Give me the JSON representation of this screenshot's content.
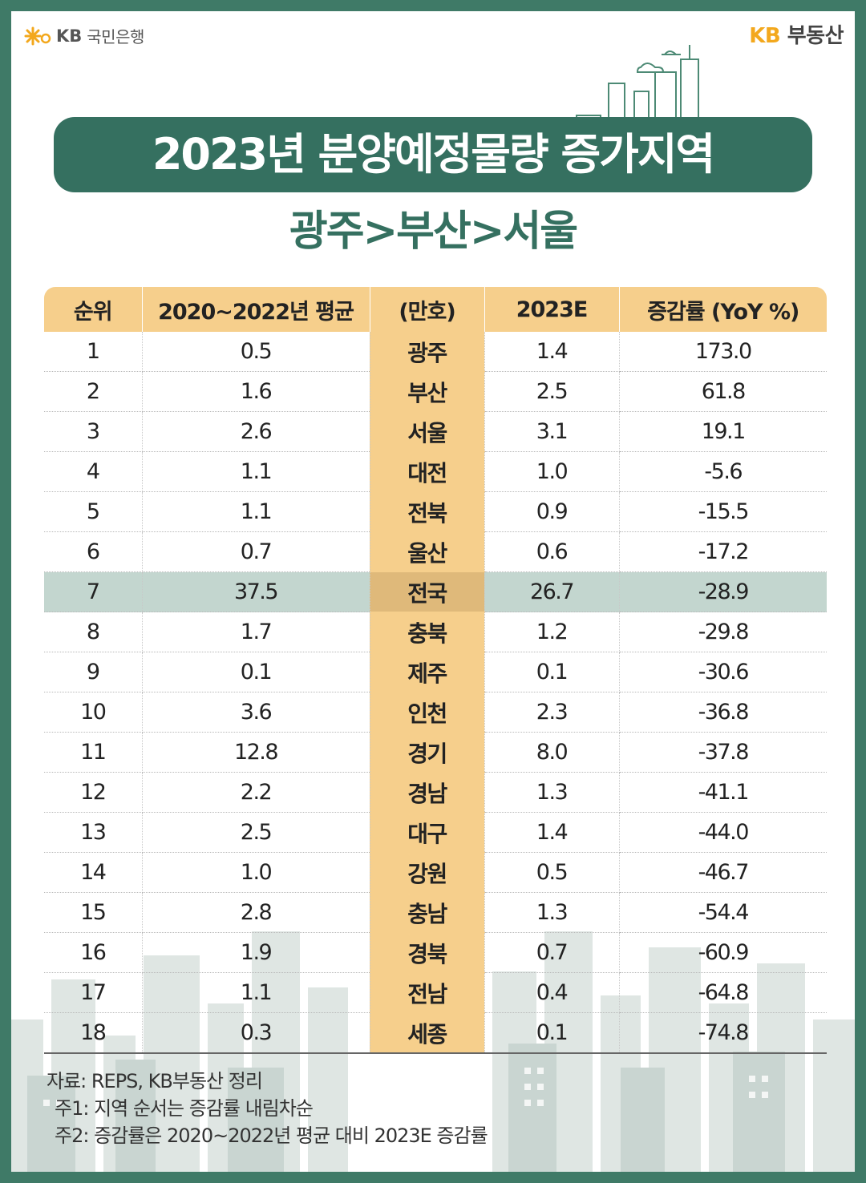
{
  "brand_left": {
    "kb": "KB",
    "name": "국민은행"
  },
  "brand_right": {
    "kb": "KB",
    "name": "부동산"
  },
  "title": "2023년 분양예정물량 증가지역",
  "subtitle": "광주>부산>서울",
  "table": {
    "headers": [
      "순위",
      "2020~2022년 평균",
      "(만호)",
      "2023E",
      "증감률 (YoY %)"
    ],
    "rows": [
      {
        "rank": "1",
        "avg": "0.5",
        "region": "광주",
        "e2023": "1.4",
        "yoy": "173.0"
      },
      {
        "rank": "2",
        "avg": "1.6",
        "region": "부산",
        "e2023": "2.5",
        "yoy": "61.8"
      },
      {
        "rank": "3",
        "avg": "2.6",
        "region": "서울",
        "e2023": "3.1",
        "yoy": "19.1"
      },
      {
        "rank": "4",
        "avg": "1.1",
        "region": "대전",
        "e2023": "1.0",
        "yoy": "-5.6"
      },
      {
        "rank": "5",
        "avg": "1.1",
        "region": "전북",
        "e2023": "0.9",
        "yoy": "-15.5"
      },
      {
        "rank": "6",
        "avg": "0.7",
        "region": "울산",
        "e2023": "0.6",
        "yoy": "-17.2"
      },
      {
        "rank": "7",
        "avg": "37.5",
        "region": "전국",
        "e2023": "26.7",
        "yoy": "-28.9"
      },
      {
        "rank": "8",
        "avg": "1.7",
        "region": "충북",
        "e2023": "1.2",
        "yoy": "-29.8"
      },
      {
        "rank": "9",
        "avg": "0.1",
        "region": "제주",
        "e2023": "0.1",
        "yoy": "-30.6"
      },
      {
        "rank": "10",
        "avg": "3.6",
        "region": "인천",
        "e2023": "2.3",
        "yoy": "-36.8"
      },
      {
        "rank": "11",
        "avg": "12.8",
        "region": "경기",
        "e2023": "8.0",
        "yoy": "-37.8"
      },
      {
        "rank": "12",
        "avg": "2.2",
        "region": "경남",
        "e2023": "1.3",
        "yoy": "-41.1"
      },
      {
        "rank": "13",
        "avg": "2.5",
        "region": "대구",
        "e2023": "1.4",
        "yoy": "-44.0"
      },
      {
        "rank": "14",
        "avg": "1.0",
        "region": "강원",
        "e2023": "0.5",
        "yoy": "-46.7"
      },
      {
        "rank": "15",
        "avg": "2.8",
        "region": "충남",
        "e2023": "1.3",
        "yoy": "-54.4"
      },
      {
        "rank": "16",
        "avg": "1.9",
        "region": "경북",
        "e2023": "0.7",
        "yoy": "-60.9"
      },
      {
        "rank": "17",
        "avg": "1.1",
        "region": "전남",
        "e2023": "0.4",
        "yoy": "-64.8"
      },
      {
        "rank": "18",
        "avg": "0.3",
        "region": "세종",
        "e2023": "0.1",
        "yoy": "-74.8"
      }
    ]
  },
  "notes": {
    "source": "자료: REPS, KB부동산 정리",
    "note1": "주1: 지역 순서는 증감률 내림차순",
    "note2": "주2: 증감률은 2020~2022년 평균 대비 2023E 증감률"
  },
  "colors": {
    "frame": "#3f7a67",
    "title_bg": "#357060",
    "header_bg": "#f6cf8c",
    "highlight": "#c3d6cf",
    "brand": "#f3a81d"
  }
}
